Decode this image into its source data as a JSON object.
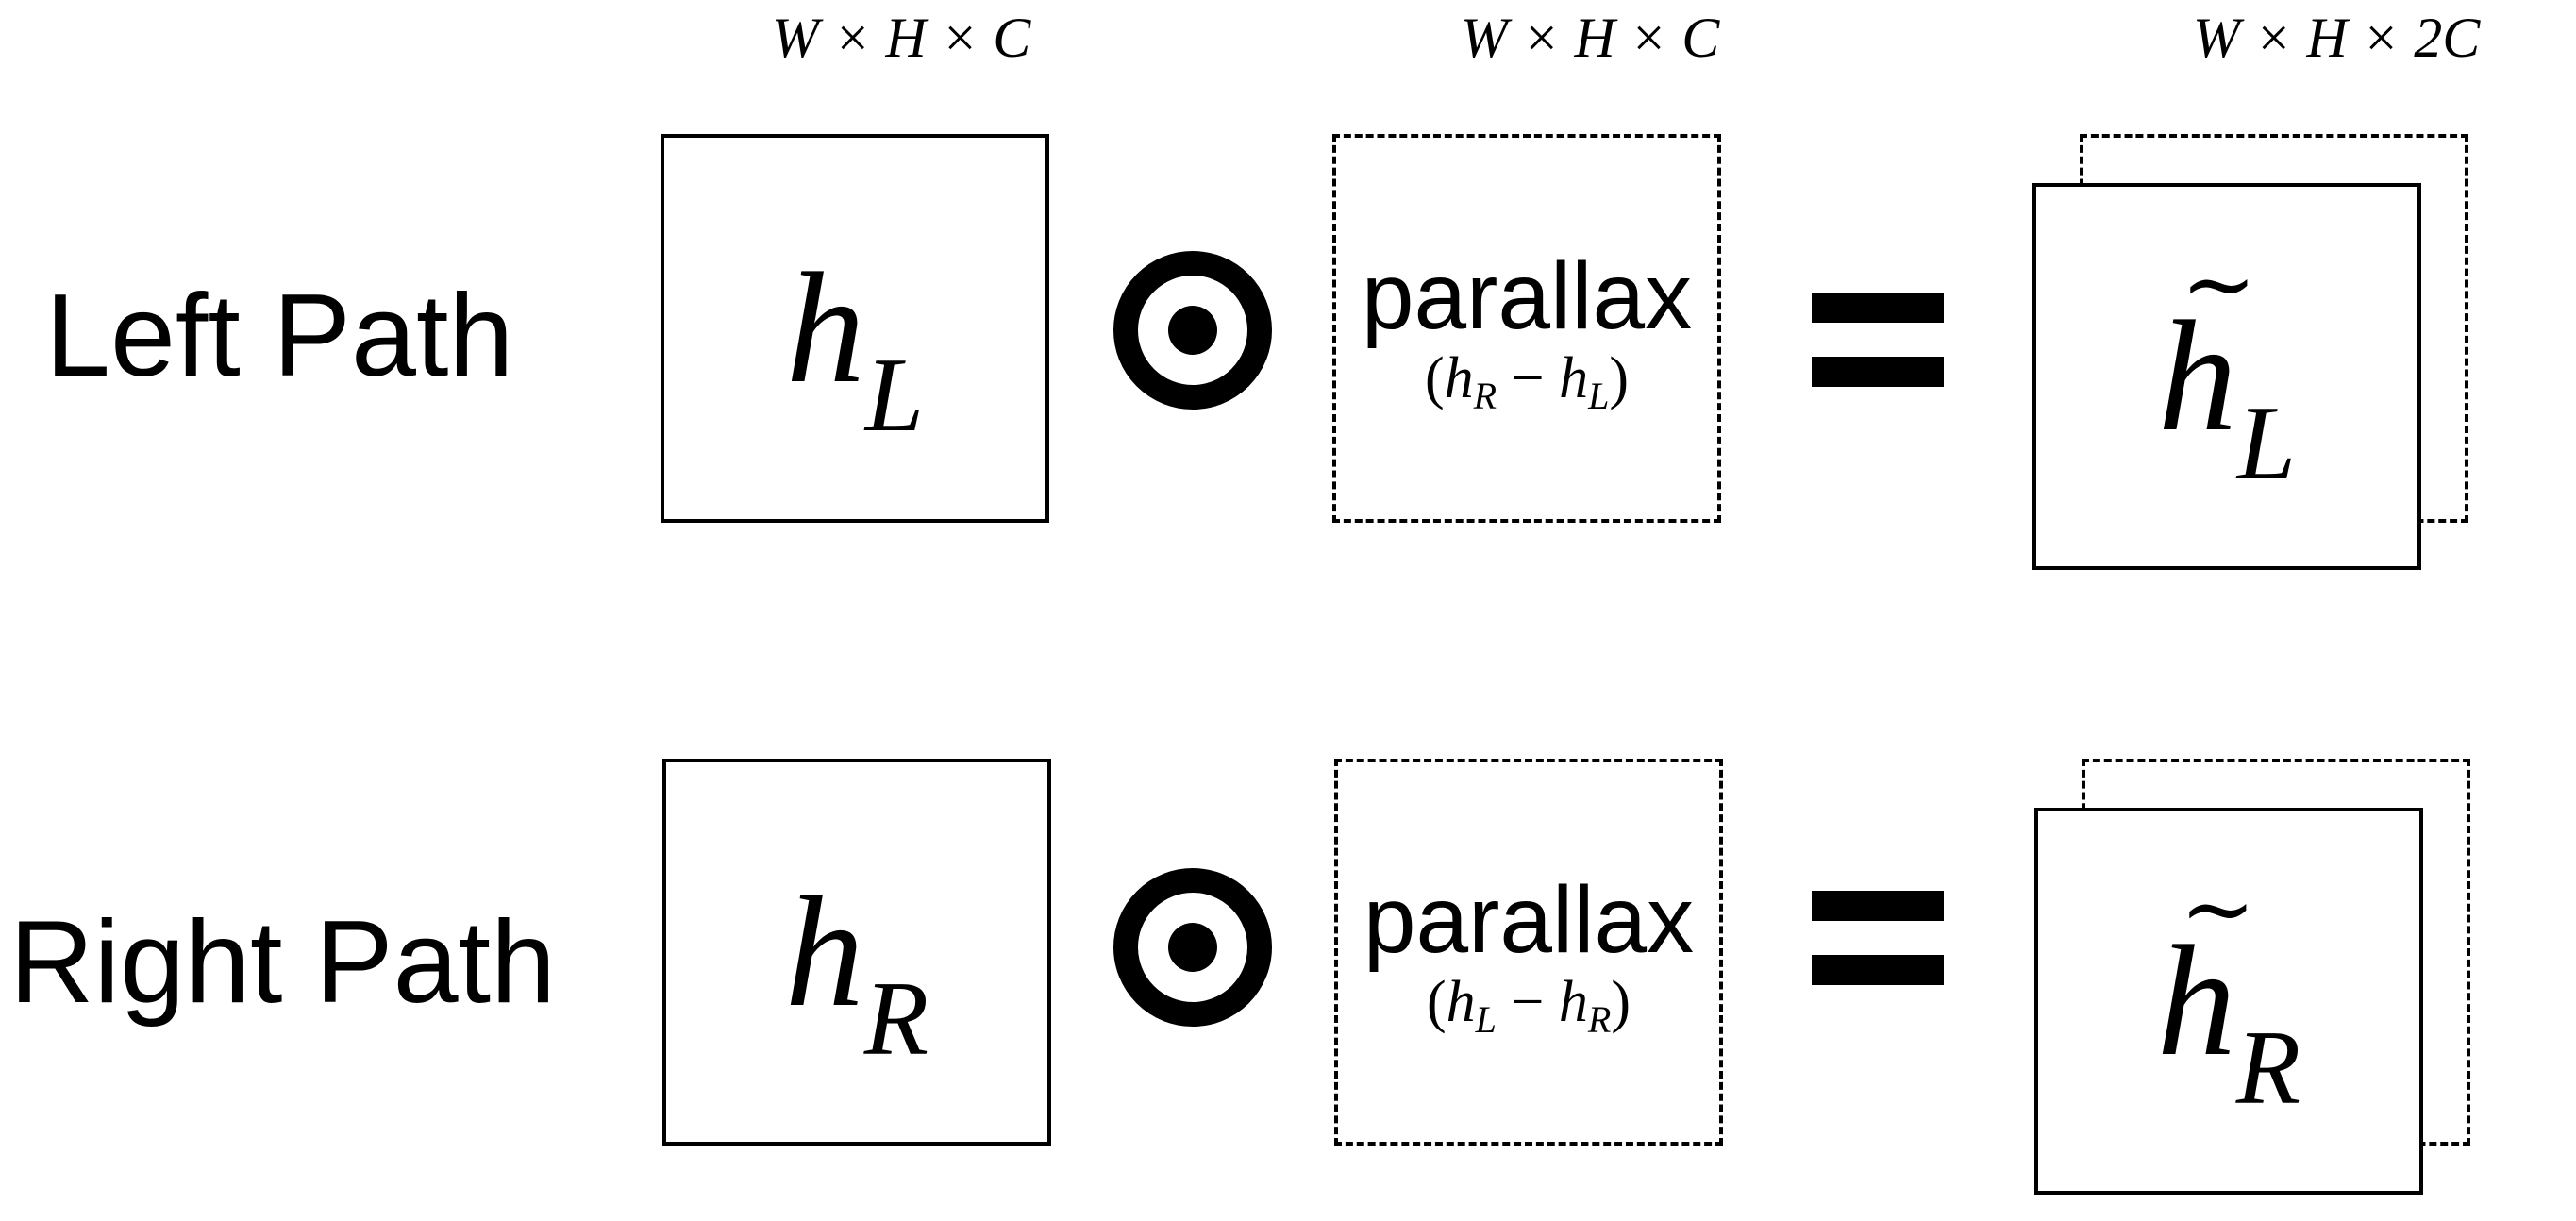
{
  "dimensions": {
    "input": "W × H × C",
    "parallax": "W × H × C",
    "output": "W × H × 2C"
  },
  "rows": [
    {
      "label": "Left Path",
      "input": {
        "main": "h",
        "sub": "L"
      },
      "operator": "⊙",
      "parallax": {
        "word": "parallax",
        "a": "h",
        "a_sub": "R",
        "b": "h",
        "b_sub": "L"
      },
      "equals": "=",
      "output": {
        "main": "h",
        "sub": "L",
        "accent": "~"
      }
    },
    {
      "label": "Right Path",
      "input": {
        "main": "h",
        "sub": "R"
      },
      "operator": "⊙",
      "parallax": {
        "word": "parallax",
        "a": "h",
        "a_sub": "L",
        "b": "h",
        "b_sub": "R"
      },
      "equals": "=",
      "output": {
        "main": "h",
        "sub": "R",
        "accent": "~"
      }
    }
  ]
}
